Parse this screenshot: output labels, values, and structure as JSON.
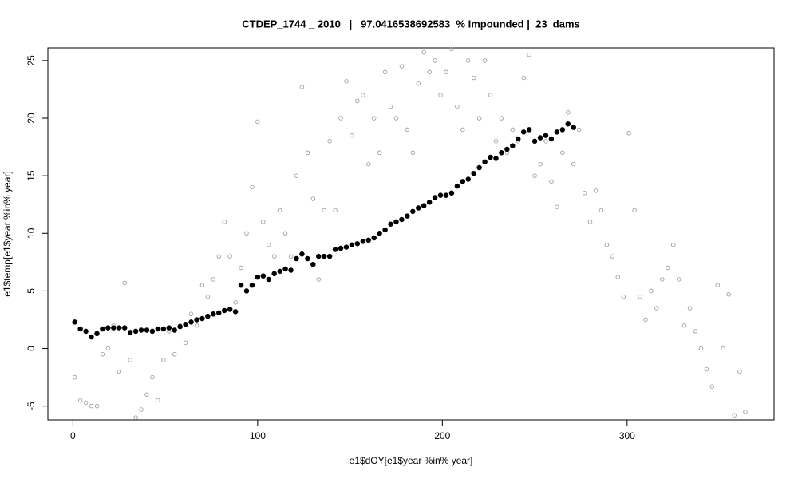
{
  "chart_data": {
    "type": "scatter",
    "title": "CTDEP_1744 _ 2010   |   97.0416538692583  % Impounded |  23  dams",
    "xlabel": "e1$dOY[e1$year %in% year]",
    "ylabel": "e1$temp[e1$year %in% year]",
    "xlim": [
      -13.56,
      379.56
    ],
    "ylim": [
      -6.2,
      26.1
    ],
    "xticks": [
      0,
      100,
      200,
      300
    ],
    "yticks": [
      -5,
      0,
      5,
      10,
      15,
      20,
      25
    ],
    "grid": false,
    "x": [
      1,
      4,
      7,
      10,
      13,
      16,
      19,
      22,
      25,
      28,
      31,
      34,
      37,
      40,
      43,
      46,
      49,
      52,
      55,
      58,
      61,
      64,
      67,
      70,
      73,
      76,
      79,
      82,
      85,
      88,
      91,
      94,
      97,
      100,
      103,
      106,
      109,
      112,
      115,
      118,
      121,
      124,
      127,
      130,
      133,
      136,
      139,
      142,
      145,
      148,
      151,
      154,
      157,
      160,
      163,
      166,
      169,
      172,
      175,
      178,
      181,
      184,
      187,
      190,
      193,
      196,
      199,
      202,
      205,
      208,
      211,
      214,
      217,
      220,
      223,
      226,
      229,
      232,
      235,
      238,
      241,
      244,
      247,
      250,
      253,
      256,
      259,
      262,
      265,
      268,
      271,
      274,
      277,
      280,
      283,
      286,
      289,
      292,
      295,
      298,
      301,
      304,
      307,
      310,
      313,
      316,
      319,
      322,
      325,
      328,
      331,
      334,
      337,
      340,
      343,
      346,
      349,
      352,
      355,
      358,
      361,
      364
    ],
    "series": [
      {
        "color": "#a0a0a0",
        "filled": false,
        "values": [
          -2.5,
          -4.5,
          -4.7,
          -5,
          -5,
          -0.5,
          0,
          2,
          -2,
          5.7,
          -1,
          -6,
          -5.3,
          -4,
          -2.5,
          -4.5,
          -1,
          1.5,
          -0.5,
          2,
          0.5,
          3,
          2,
          5.5,
          4.5,
          6,
          8,
          11,
          8,
          4,
          7,
          10,
          14,
          19.7,
          11,
          9,
          8,
          12,
          10,
          8,
          15,
          22.7,
          17,
          13,
          6,
          12,
          18,
          12,
          20,
          23.2,
          18.5,
          21.5,
          22,
          16,
          20,
          17,
          24,
          21,
          20,
          24.5,
          19,
          17,
          23,
          25.7,
          24,
          25,
          22,
          24,
          26,
          21,
          19,
          25,
          23.5,
          20,
          25,
          22,
          18,
          20,
          17,
          19,
          18,
          23.5,
          25.5,
          15,
          16,
          18,
          14.5,
          12.3,
          17,
          20.5,
          16,
          19,
          13.5,
          11,
          13.7,
          12,
          9,
          8,
          6.2,
          4.5,
          18.7,
          12,
          4.5,
          2.5,
          5,
          3.5,
          6,
          7,
          9,
          6,
          2,
          3.5,
          1.5,
          0,
          -1.8,
          -3.3,
          5.5,
          0,
          4.7,
          -5.8,
          -2,
          -5.5
        ]
      },
      {
        "color": "#000000",
        "filled": true,
        "values": [
          2.3,
          1.7,
          1.5,
          1.0,
          1.3,
          1.7,
          1.8,
          1.8,
          1.8,
          1.8,
          1.4,
          1.5,
          1.6,
          1.6,
          1.5,
          1.7,
          1.7,
          1.8,
          1.6,
          1.9,
          2.1,
          2.3,
          2.5,
          2.6,
          2.8,
          3.0,
          3.1,
          3.3,
          3.4,
          3.2,
          5.5,
          5.0,
          5.5,
          6.2,
          6.3,
          6.0,
          6.5,
          6.7,
          6.9,
          6.8,
          7.8,
          8.2,
          7.8,
          7.3,
          8.0,
          8.0,
          8.0,
          8.6,
          8.7,
          8.8,
          9.0,
          9.1,
          9.3,
          9.4,
          9.6,
          10.0,
          10.3,
          10.8,
          11.0,
          11.2,
          11.5,
          11.9,
          12.2,
          12.4,
          12.7,
          13.1,
          13.3,
          13.3,
          13.5,
          14.1,
          14.5,
          14.7,
          15.2,
          15.7,
          16.2,
          16.6,
          16.5,
          17.0,
          17.3,
          17.6,
          18.2,
          18.8,
          19.0,
          18.0,
          18.3,
          18.5,
          18.2,
          18.8,
          19.0,
          19.5,
          19.2,
          null,
          null,
          null,
          null,
          null,
          null,
          null,
          null,
          null,
          null,
          null,
          null,
          null,
          null,
          null,
          null,
          null,
          null,
          null,
          null,
          null,
          null,
          null,
          null,
          null,
          null,
          null,
          null,
          null,
          null,
          null
        ]
      }
    ]
  }
}
